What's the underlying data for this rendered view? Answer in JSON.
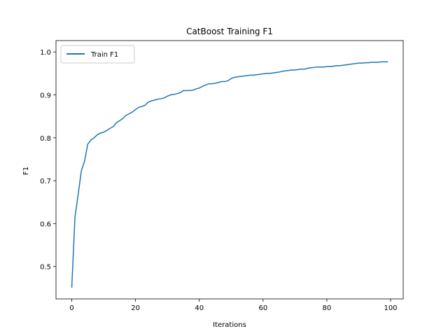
{
  "chart_data": {
    "type": "line",
    "title": "CatBoost Training F1",
    "xlabel": "Iterations",
    "ylabel": "F1",
    "xlim": [
      -4.95,
      103.95
    ],
    "ylim": [
      0.4245,
      1.0265
    ],
    "xticks": [
      0,
      20,
      40,
      60,
      80,
      100
    ],
    "yticks": [
      0.5,
      0.6,
      0.7,
      0.8,
      0.9,
      1.0
    ],
    "xtick_labels": [
      "0",
      "20",
      "40",
      "60",
      "80",
      "100"
    ],
    "ytick_labels": [
      "0.5",
      "0.6",
      "0.7",
      "0.8",
      "0.9",
      "1.0"
    ],
    "grid": false,
    "legend_position": "upper-left",
    "series": [
      {
        "name": "Train F1",
        "color": "#1f77b4",
        "x": [
          0,
          1,
          2,
          3,
          4,
          5,
          6,
          7,
          8,
          9,
          10,
          11,
          12,
          13,
          14,
          15,
          16,
          17,
          18,
          19,
          20,
          21,
          22,
          23,
          24,
          25,
          26,
          27,
          28,
          29,
          30,
          31,
          32,
          33,
          34,
          35,
          36,
          37,
          38,
          39,
          40,
          41,
          42,
          43,
          44,
          45,
          46,
          47,
          48,
          49,
          50,
          51,
          52,
          53,
          54,
          55,
          56,
          57,
          58,
          59,
          60,
          61,
          62,
          63,
          64,
          65,
          66,
          67,
          68,
          69,
          70,
          71,
          72,
          73,
          74,
          75,
          76,
          77,
          78,
          79,
          80,
          81,
          82,
          83,
          84,
          85,
          86,
          87,
          88,
          89,
          90,
          91,
          92,
          93,
          94,
          95,
          96,
          97,
          98,
          99
        ],
        "y": [
          0.452,
          0.615,
          0.668,
          0.723,
          0.745,
          0.785,
          0.795,
          0.8,
          0.807,
          0.811,
          0.813,
          0.817,
          0.822,
          0.826,
          0.835,
          0.84,
          0.845,
          0.852,
          0.856,
          0.86,
          0.866,
          0.871,
          0.873,
          0.876,
          0.883,
          0.886,
          0.888,
          0.89,
          0.891,
          0.893,
          0.897,
          0.9,
          0.901,
          0.903,
          0.905,
          0.91,
          0.91,
          0.91,
          0.911,
          0.914,
          0.916,
          0.92,
          0.923,
          0.926,
          0.926,
          0.927,
          0.929,
          0.931,
          0.931,
          0.933,
          0.938,
          0.941,
          0.942,
          0.943,
          0.944,
          0.945,
          0.946,
          0.946,
          0.947,
          0.948,
          0.949,
          0.95,
          0.95,
          0.951,
          0.952,
          0.953,
          0.955,
          0.956,
          0.957,
          0.958,
          0.958,
          0.959,
          0.96,
          0.96,
          0.962,
          0.963,
          0.964,
          0.965,
          0.965,
          0.965,
          0.966,
          0.966,
          0.967,
          0.968,
          0.968,
          0.969,
          0.97,
          0.971,
          0.972,
          0.973,
          0.974,
          0.974,
          0.975,
          0.975,
          0.976,
          0.976,
          0.976,
          0.977,
          0.977,
          0.977
        ]
      }
    ]
  }
}
